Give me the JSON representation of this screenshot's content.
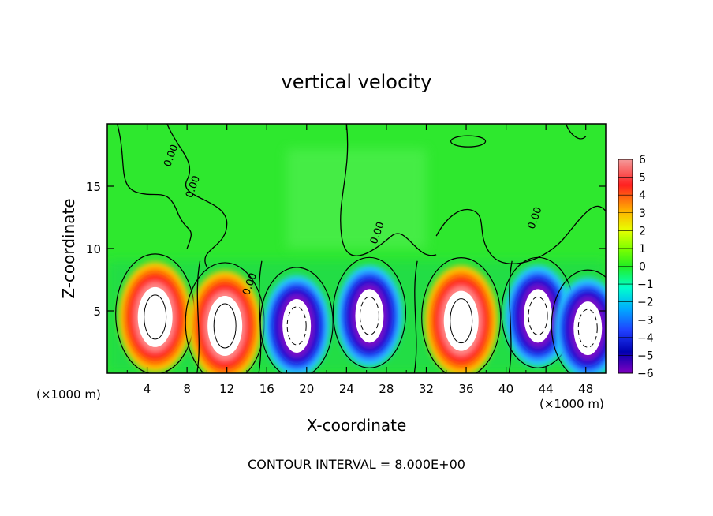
{
  "chart_data": {
    "type": "heatmap",
    "title": "vertical velocity",
    "xlabel": "X-coordinate",
    "ylabel": "Z-coordinate",
    "x_unit_left": "(×1000 m)",
    "x_unit_right": "(×1000 m)",
    "footer": "CONTOUR INTERVAL = 8.000E+00",
    "xlim": [
      0,
      50
    ],
    "ylim": [
      0,
      20
    ],
    "x_ticks": [
      4,
      8,
      12,
      16,
      20,
      24,
      28,
      32,
      36,
      40,
      44,
      48
    ],
    "y_ticks": [
      5,
      10,
      15
    ],
    "colorbar": {
      "ticks": [
        6,
        5,
        4,
        3,
        2,
        1,
        0,
        -1,
        -2,
        -3,
        -4,
        -5,
        -6
      ],
      "range": [
        -6,
        6
      ]
    },
    "contour_labels": [
      {
        "text": "0.00",
        "x": 6.3,
        "y": 16.5
      },
      {
        "text": "0.00",
        "x": 8.5,
        "y": 14.0
      },
      {
        "text": "0.00",
        "x": 14.2,
        "y": 6.2
      },
      {
        "text": "0.00",
        "x": 27.0,
        "y": 10.3
      },
      {
        "text": "0.00",
        "x": 42.8,
        "y": 11.5
      }
    ],
    "cells": [
      {
        "x": 4.8,
        "z": 4.5,
        "w": 1
      },
      {
        "x": 11.8,
        "z": 3.8,
        "w": 1
      },
      {
        "x": 19.0,
        "z": 3.8,
        "w": -1
      },
      {
        "x": 26.3,
        "z": 4.6,
        "w": -1
      },
      {
        "x": 35.5,
        "z": 4.2,
        "w": 1
      },
      {
        "x": 43.2,
        "z": 4.6,
        "w": -1
      },
      {
        "x": 48.2,
        "z": 3.6,
        "w": -1
      }
    ]
  }
}
